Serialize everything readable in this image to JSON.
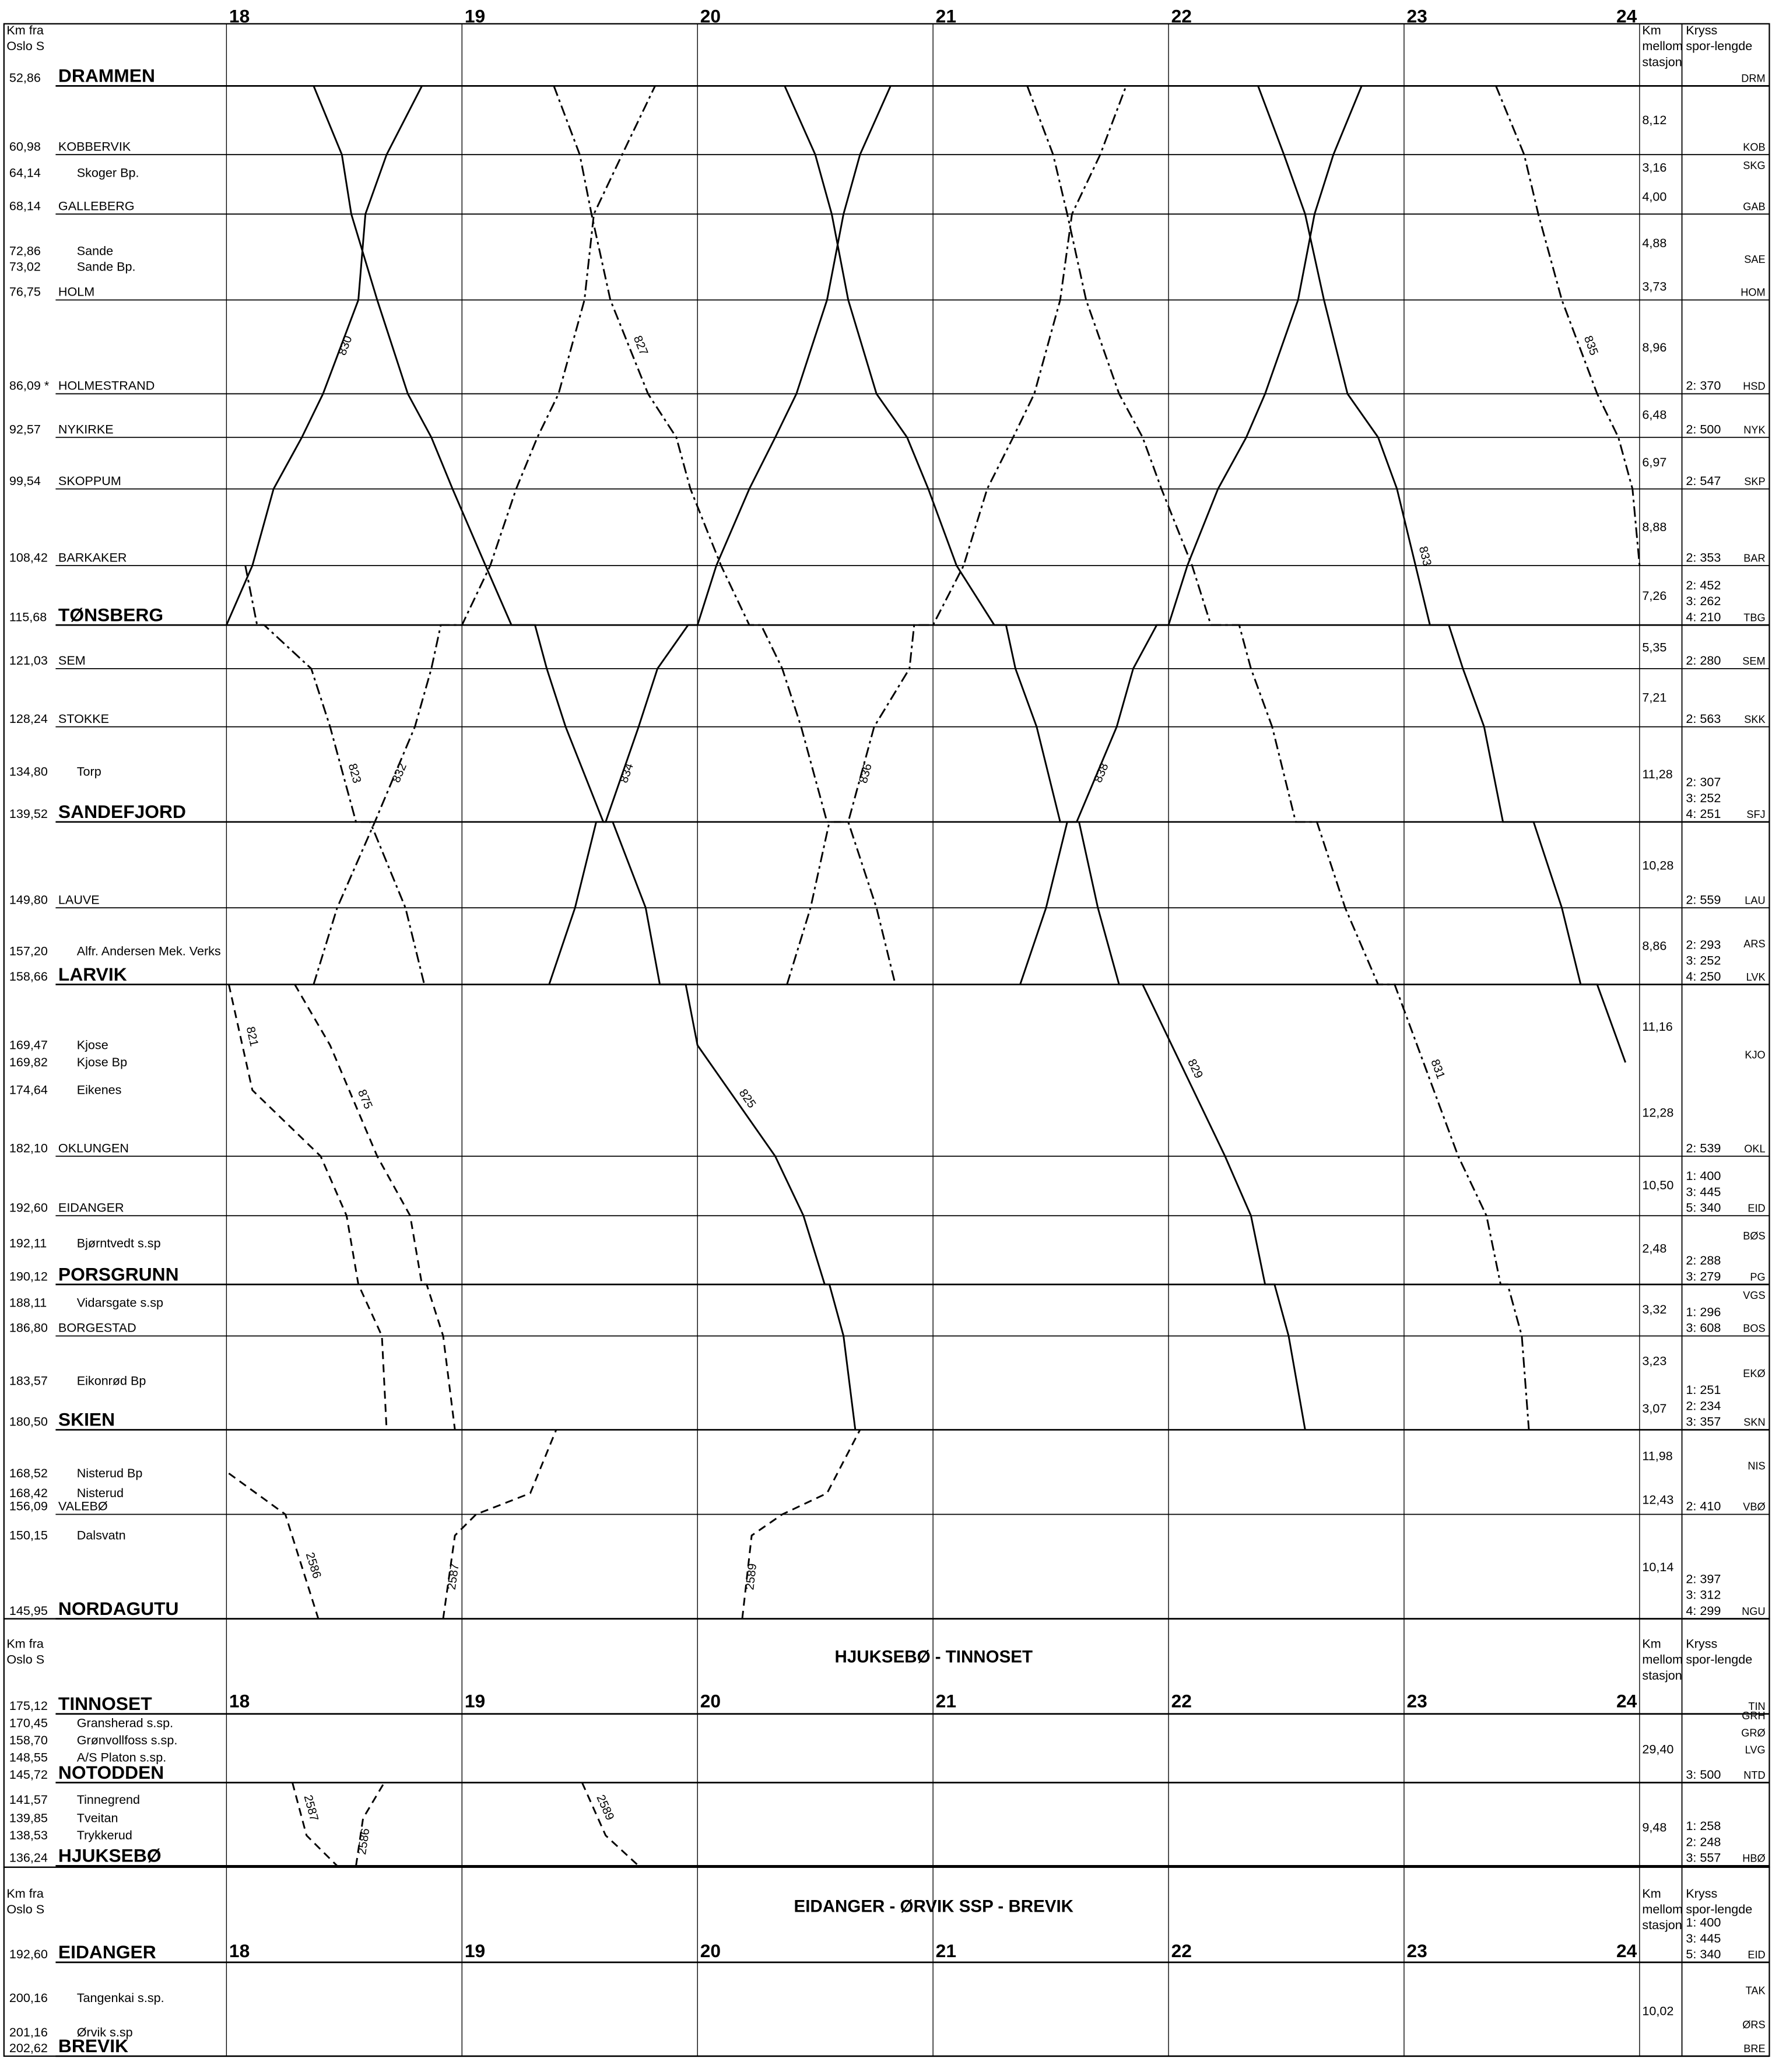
{
  "header": {
    "km_from": [
      "Km fra",
      "Oslo S"
    ],
    "km_between": [
      "Km",
      "mellom",
      "stasjon"
    ],
    "kryss": [
      "Kryss",
      "spor-lengde"
    ]
  },
  "sections": [
    {
      "hours": [
        18,
        19,
        20,
        21,
        22,
        23,
        24
      ],
      "xlim": [
        18,
        24
      ],
      "stations": [
        {
          "km": "52,86",
          "name": "DRAMMEN",
          "abbr": "DRM"
        },
        {
          "km": "60,98",
          "name": "KOBBERVIK",
          "abbr": "KOB"
        },
        {
          "km": "64,14",
          "name": "Skoger  Bp.",
          "abbr": "SKG"
        },
        {
          "km": "68,14",
          "name": "GALLEBERG",
          "abbr": "GAB"
        },
        {
          "km": "72,86",
          "name": "Sande"
        },
        {
          "km": "73,02",
          "name": "Sande Bp.",
          "abbr": "SAE"
        },
        {
          "km": "76,75",
          "name": "HOLM",
          "abbr": "HOM"
        },
        {
          "km": "86,09 *",
          "name": "HOLMESTRAND",
          "abbr": "HSD",
          "kryss": [
            "2: 370"
          ]
        },
        {
          "km": "92,57",
          "name": "NYKIRKE",
          "abbr": "NYK",
          "kryss": [
            "2: 500"
          ]
        },
        {
          "km": "99,54",
          "name": "SKOPPUM",
          "abbr": "SKP",
          "kryss": [
            "2: 547"
          ]
        },
        {
          "km": "108,42",
          "name": "BARKAKER",
          "abbr": "BAR",
          "kryss": [
            "2: 353"
          ]
        },
        {
          "km": "115,68",
          "name": "TØNSBERG",
          "abbr": "TBG",
          "kryss": [
            "2: 452",
            "3: 262",
            "4: 210"
          ]
        },
        {
          "km": "121,03",
          "name": "SEM",
          "abbr": "SEM",
          "kryss": [
            "2: 280"
          ]
        },
        {
          "km": "128,24",
          "name": "STOKKE",
          "abbr": "SKK",
          "kryss": [
            "2: 563"
          ]
        },
        {
          "km": "134,80",
          "name": "Torp"
        },
        {
          "km": "139,52",
          "name": "SANDEFJORD",
          "abbr": "SFJ",
          "kryss": [
            "2: 307",
            "3: 252",
            "4: 251"
          ]
        },
        {
          "km": "149,80",
          "name": "LAUVE",
          "abbr": "LAU",
          "kryss": [
            "2: 559"
          ]
        },
        {
          "km": "157,20",
          "name": "Alfr. Andersen Mek. Verks",
          "abbr": "ARS"
        },
        {
          "km": "158,66",
          "name": "LARVIK",
          "abbr": "LVK",
          "kryss": [
            "2: 293",
            "3: 252",
            "4: 250"
          ]
        },
        {
          "km": "169,47",
          "name": "Kjose"
        },
        {
          "km": "169,82",
          "name": "Kjose Bp",
          "abbr": "KJO"
        },
        {
          "km": "174,64",
          "name": "Eikenes"
        },
        {
          "km": "182,10",
          "name": "OKLUNGEN",
          "abbr": "OKL",
          "kryss": [
            "2: 539"
          ]
        },
        {
          "km": "192,60",
          "name": "EIDANGER",
          "abbr": "EID",
          "kryss": [
            "1: 400",
            "3: 445",
            "5: 340"
          ]
        },
        {
          "km": "192,11",
          "name": "Bjørntvedt s.sp",
          "abbr": "BØS"
        },
        {
          "km": "190,12",
          "name": "PORSGRUNN",
          "abbr": "PG",
          "kryss": [
            "2: 288",
            "3: 279"
          ]
        },
        {
          "km": "188,11",
          "name": "Vidarsgate s.sp",
          "abbr": "VGS"
        },
        {
          "km": "186,80",
          "name": "BORGESTAD",
          "abbr": "BOS",
          "kryss": [
            "1: 296",
            "3: 608"
          ]
        },
        {
          "km": "183,57",
          "name": "Eikonrød Bp",
          "abbr": "EKØ"
        },
        {
          "km": "180,50",
          "name": "SKIEN",
          "abbr": "SKN",
          "kryss": [
            "1: 251",
            "2: 234",
            "3: 357"
          ]
        },
        {
          "km": "168,52",
          "name": "Nisterud Bp",
          "abbr": "NIS"
        },
        {
          "km": "168,42",
          "name": "Nisterud"
        },
        {
          "km": "156,09",
          "name": "VALEBØ",
          "abbr": "VBØ",
          "kryss": [
            "2: 410"
          ]
        },
        {
          "km": "150,15",
          "name": "Dalsvatn"
        },
        {
          "km": "145,95",
          "name": "NORDAGUTU",
          "abbr": "NGU",
          "kryss": [
            "2: 397",
            "3: 312",
            "4: 299"
          ]
        }
      ],
      "km_between": [
        "8,12",
        "3,16",
        "4,00",
        "4,88",
        "3,73",
        "8,96",
        "6,48",
        "6,97",
        "8,88",
        "7,26",
        "5,35",
        "7,21",
        "11,28",
        "10,28",
        "8,86",
        "11,16",
        "12,28",
        "10,50",
        "2,48",
        "3,32",
        "3,23",
        "3,07",
        "11,98",
        "12,43",
        "10,14"
      ],
      "trains": [
        {
          "name": "825",
          "style": "solid",
          "stations": [
            0,
            1,
            3,
            6,
            7,
            8,
            9,
            10,
            11,
            11,
            12,
            13,
            15,
            15,
            16,
            18,
            18,
            19,
            22,
            23,
            25,
            25,
            27,
            29
          ],
          "times": [
            18.37,
            18.49,
            18.53,
            18.64,
            18.77,
            18.87,
            18.96,
            19.1,
            19.21,
            19.31,
            19.36,
            19.44,
            19.6,
            19.64,
            19.78,
            19.84,
            19.95,
            20.0,
            20.33,
            20.45,
            20.54,
            20.56,
            20.62,
            20.67
          ]
        },
        {
          "name": "830",
          "style": "solid",
          "stations": [
            11,
            10,
            9,
            8,
            7,
            6,
            3,
            1,
            0
          ],
          "times": [
            18.0,
            18.11,
            18.2,
            18.32,
            18.41,
            18.56,
            18.59,
            18.68,
            18.83
          ]
        },
        {
          "name": "834",
          "style": "solid",
          "stations": [
            18,
            16,
            15,
            15,
            13,
            12,
            11,
            11,
            10,
            9,
            8,
            7,
            6,
            3,
            1,
            0
          ],
          "times": [
            19.37,
            19.48,
            19.57,
            19.61,
            19.75,
            19.83,
            19.96,
            20.0,
            20.08,
            20.22,
            20.33,
            20.42,
            20.55,
            20.62,
            20.69,
            20.82
          ]
        },
        {
          "name": "829",
          "style": "solid",
          "stations": [
            0,
            1,
            3,
            6,
            7,
            8,
            9,
            10,
            11,
            11,
            12,
            13,
            15,
            15,
            16,
            18,
            18,
            22,
            23,
            25,
            25,
            27,
            29
          ],
          "times": [
            20.37,
            20.5,
            20.57,
            20.64,
            20.76,
            20.89,
            20.98,
            21.1,
            21.26,
            21.31,
            21.35,
            21.44,
            21.54,
            21.62,
            21.7,
            21.79,
            21.89,
            22.24,
            22.35,
            22.41,
            22.45,
            22.51,
            22.58
          ]
        },
        {
          "name": "838",
          "style": "solid",
          "stations": [
            18,
            16,
            15,
            15,
            13,
            12,
            11,
            11,
            10,
            9,
            8,
            7,
            6,
            3,
            1,
            0
          ],
          "times": [
            21.37,
            21.48,
            21.57,
            21.61,
            21.78,
            21.85,
            21.95,
            22.0,
            22.08,
            22.21,
            22.33,
            22.41,
            22.55,
            22.62,
            22.7,
            22.82
          ]
        },
        {
          "name": "833",
          "style": "solid",
          "stations": [
            0,
            1,
            3,
            6,
            7,
            8,
            9,
            11,
            11,
            12,
            13,
            15,
            15,
            16,
            18,
            18,
            20
          ],
          "times": [
            22.38,
            22.49,
            22.58,
            22.66,
            22.76,
            22.89,
            22.97,
            23.11,
            23.19,
            23.25,
            23.34,
            23.42,
            23.55,
            23.67,
            23.75,
            23.82,
            23.94
          ]
        },
        {
          "name": "832",
          "style": "dashdot",
          "stations": [
            18,
            16,
            15,
            13,
            12,
            11,
            11,
            10,
            9,
            8,
            7,
            6,
            3,
            1,
            0
          ],
          "times": [
            18.37,
            18.47,
            18.63,
            18.8,
            18.87,
            18.91,
            19.0,
            19.12,
            19.23,
            19.32,
            19.41,
            19.52,
            19.56,
            19.68,
            19.82
          ]
        },
        {
          "name": "827",
          "style": "dashdot",
          "stations": [
            0,
            1,
            3,
            6,
            7,
            8,
            9,
            10,
            11,
            11,
            12,
            13,
            15,
            15,
            16,
            18
          ],
          "times": [
            19.39,
            19.5,
            19.55,
            19.63,
            19.79,
            19.91,
            19.97,
            20.1,
            20.22,
            20.27,
            20.36,
            20.44,
            20.55,
            20.64,
            20.76,
            20.84
          ]
        },
        {
          "name": "823",
          "style": "dashdot",
          "stations": [
            10,
            11,
            11,
            12,
            13,
            15,
            15,
            16,
            18
          ],
          "times": [
            18.08,
            18.13,
            18.16,
            18.36,
            18.44,
            18.55,
            18.61,
            18.76,
            18.84
          ]
        },
        {
          "name": "836",
          "style": "dashdot",
          "stations": [
            18,
            16,
            15,
            15,
            13,
            12,
            11,
            11,
            10,
            9,
            8,
            7,
            6,
            3,
            1,
            0
          ],
          "times": [
            20.38,
            20.48,
            20.56,
            20.64,
            20.75,
            20.9,
            20.92,
            21.0,
            21.13,
            21.23,
            21.34,
            21.43,
            21.54,
            21.59,
            21.71,
            21.82
          ]
        },
        {
          "name": "831",
          "style": "dashdot",
          "stations": [
            0,
            1,
            3,
            6,
            7,
            8,
            9,
            10,
            11,
            11,
            12,
            13,
            15,
            15,
            16,
            18,
            18,
            22,
            23,
            25,
            25,
            27,
            29
          ],
          "times": [
            21.4,
            21.51,
            21.57,
            21.65,
            21.79,
            21.89,
            21.97,
            22.1,
            22.18,
            22.3,
            22.35,
            22.44,
            22.54,
            22.63,
            22.75,
            22.89,
            22.96,
            23.23,
            23.35,
            23.41,
            23.44,
            23.5,
            23.53
          ]
        },
        {
          "name": "835",
          "style": "dashdot",
          "stations": [
            0,
            1,
            3,
            6,
            7,
            8,
            9,
            10
          ],
          "times": [
            23.39,
            23.51,
            23.57,
            23.67,
            23.82,
            23.91,
            23.97,
            24.0
          ]
        },
        {
          "name": "821",
          "style": "dashed",
          "stations": [
            18,
            21,
            22,
            23,
            25,
            27,
            29
          ],
          "times": [
            18.01,
            18.11,
            18.4,
            18.51,
            18.56,
            18.66,
            18.68
          ]
        },
        {
          "name": "875",
          "style": "dashed",
          "stations": [
            18,
            19,
            22,
            23,
            25,
            25,
            27,
            29
          ],
          "times": [
            18.29,
            18.44,
            18.64,
            18.78,
            18.83,
            18.85,
            18.92,
            18.97
          ]
        },
        {
          "name": "2586",
          "style": "dashed",
          "stations": [
            30,
            32,
            34
          ],
          "times": [
            18.01,
            18.25,
            18.39
          ]
        },
        {
          "name": "2587",
          "style": "dashed",
          "stations": [
            34,
            33,
            32,
            31,
            29
          ],
          "times": [
            18.92,
            18.97,
            19.06,
            19.29,
            19.4
          ]
        },
        {
          "name": "2589",
          "style": "dashed",
          "stations": [
            34,
            33,
            32,
            31,
            29
          ],
          "times": [
            20.19,
            20.23,
            20.36,
            20.55,
            20.69
          ]
        }
      ]
    },
    {
      "title": "HJUKSEBØ - TINNOSET",
      "hours": [
        18,
        19,
        20,
        21,
        22,
        23,
        24
      ],
      "xlim": [
        18,
        24
      ],
      "stations": [
        {
          "km": "175,12",
          "name": "TINNOSET",
          "abbr": "TIN"
        },
        {
          "km": "170,45",
          "name": "Gransherad s.sp.",
          "abbr": "GRH"
        },
        {
          "km": "158,70",
          "name": "Grønvollfoss s.sp.",
          "abbr": "GRØ"
        },
        {
          "km": "148,55",
          "name": "A/S Platon s.sp.",
          "abbr": "LVG"
        },
        {
          "km": "145,72",
          "name": "NOTODDEN",
          "abbr": "NTD",
          "kryss": [
            "3: 500"
          ]
        },
        {
          "km": "141,57",
          "name": "Tinnegrend"
        },
        {
          "km": "139,85",
          "name": "Tveitan"
        },
        {
          "km": "138,53",
          "name": "Trykkerud"
        },
        {
          "km": "136,24",
          "name": "HJUKSEBØ",
          "abbr": "HBØ",
          "kryss": [
            "1: 258",
            "2: 248",
            "3: 557"
          ]
        }
      ],
      "km_between": [
        "29,40",
        "9,48"
      ],
      "trains": [
        {
          "name": "2587",
          "style": "dashed",
          "stations": [
            4,
            7,
            8
          ],
          "times": [
            18.28,
            18.34,
            18.47
          ]
        },
        {
          "name": "2586",
          "style": "dashed",
          "stations": [
            8,
            6,
            4
          ],
          "times": [
            18.55,
            18.58,
            18.67
          ]
        },
        {
          "name": "2589",
          "style": "dashed",
          "stations": [
            4,
            7,
            8
          ],
          "times": [
            19.51,
            19.61,
            19.75
          ]
        }
      ]
    },
    {
      "title": "EIDANGER - ØRVIK SSP - BREVIK",
      "hours": [
        18,
        19,
        20,
        21,
        22,
        23,
        24
      ],
      "xlim": [
        18,
        24
      ],
      "stations": [
        {
          "km": "192,60",
          "name": "EIDANGER",
          "abbr": "EID",
          "kryss": [
            "1: 400",
            "3: 445",
            "5: 340"
          ]
        },
        {
          "km": "200,16",
          "name": "Tangenkai s.sp.",
          "abbr": "TAK"
        },
        {
          "km": "201,16",
          "name": "Ørvik s.sp",
          "abbr": "ØRS"
        },
        {
          "km": "202,62",
          "name": "BREVIK",
          "abbr": "BRE"
        }
      ],
      "km_between": [
        "10,02"
      ],
      "trains": []
    }
  ]
}
